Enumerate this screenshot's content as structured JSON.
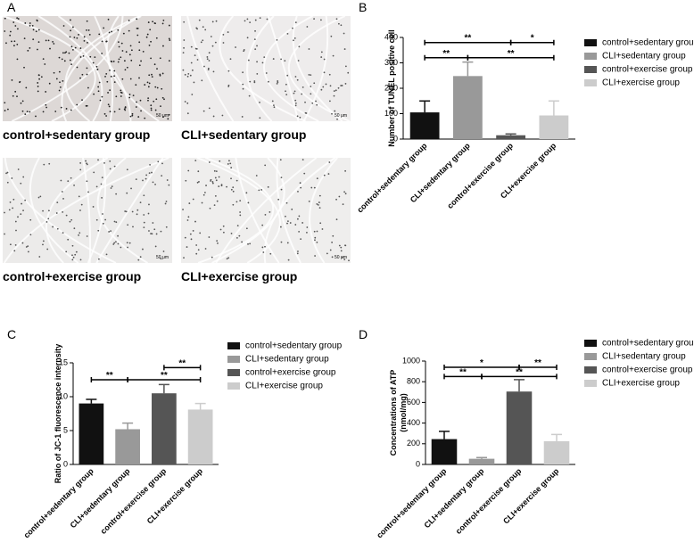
{
  "figure": {
    "panel_label": "A",
    "micrographs": [
      {
        "caption": "control+sedentary group",
        "scale_bar": "50 μm"
      },
      {
        "caption": "CLI+sedentary group",
        "scale_bar": "50 μm"
      },
      {
        "caption": "control+exercise group",
        "scale_bar": "50 μm"
      },
      {
        "caption": "CLI+exercise group",
        "scale_bar": "50 μm"
      }
    ]
  },
  "chart_data": [
    {
      "type": "bar",
      "label": "B",
      "ylabel": [
        "Number of TUNEL positive cell"
      ],
      "categories": [
        "control+sedentary group",
        "CLI+sedentary group",
        "control+exercise group",
        "CLI+exercise group"
      ],
      "values": [
        105,
        248,
        15,
        93
      ],
      "errors": [
        45,
        55,
        5,
        57
      ],
      "colors": [
        "#111111",
        "#999999",
        "#555555",
        "#cccccc"
      ],
      "ylim": [
        0,
        400
      ],
      "yticks": [
        0,
        100,
        200,
        300,
        400
      ],
      "annotations": [
        {
          "label": "**",
          "from": 0,
          "to": 2,
          "level": 380
        },
        {
          "label": "*",
          "from": 2,
          "to": 3,
          "level": 380
        },
        {
          "label": "**",
          "from": 0,
          "to": 1,
          "level": 320
        },
        {
          "label": "**",
          "from": 1,
          "to": 3,
          "level": 320
        }
      ]
    },
    {
      "type": "bar",
      "label": "C",
      "ylabel": [
        "Ratio of JC-1 fluorescence internsity"
      ],
      "categories": [
        "control+sedentary group",
        "CLI+sedentary group",
        "control+exercise group",
        "CLI+exercise group"
      ],
      "values": [
        9.0,
        5.2,
        10.5,
        8.1
      ],
      "errors": [
        0.6,
        0.9,
        1.3,
        0.9
      ],
      "colors": [
        "#111111",
        "#999999",
        "#555555",
        "#cccccc"
      ],
      "ylim": [
        0,
        15
      ],
      "yticks": [
        0,
        5,
        10,
        15
      ],
      "annotations": [
        {
          "label": "**",
          "from": 2,
          "to": 3,
          "level": 14.3
        },
        {
          "label": "**",
          "from": 0,
          "to": 1,
          "level": 12.5
        },
        {
          "label": "**",
          "from": 1,
          "to": 3,
          "level": 12.5
        }
      ]
    },
    {
      "type": "bar",
      "label": "D",
      "ylabel": [
        "Concentrations of ATP",
        "(nmol/mg)"
      ],
      "categories": [
        "control+sedentary group",
        "CLI+sedentary group",
        "control+exercise group",
        "CLI+exercise group"
      ],
      "values": [
        245,
        55,
        705,
        225
      ],
      "errors": [
        75,
        12,
        115,
        65
      ],
      "colors": [
        "#111111",
        "#999999",
        "#555555",
        "#cccccc"
      ],
      "ylim": [
        0,
        1000
      ],
      "yticks": [
        0,
        200,
        400,
        600,
        800,
        1000
      ],
      "annotations": [
        {
          "label": "*",
          "from": 0,
          "to": 2,
          "level": 940
        },
        {
          "label": "**",
          "from": 2,
          "to": 3,
          "level": 940
        },
        {
          "label": "**",
          "from": 0,
          "to": 1,
          "level": 850
        },
        {
          "label": "**",
          "from": 1,
          "to": 3,
          "level": 850
        }
      ]
    }
  ]
}
